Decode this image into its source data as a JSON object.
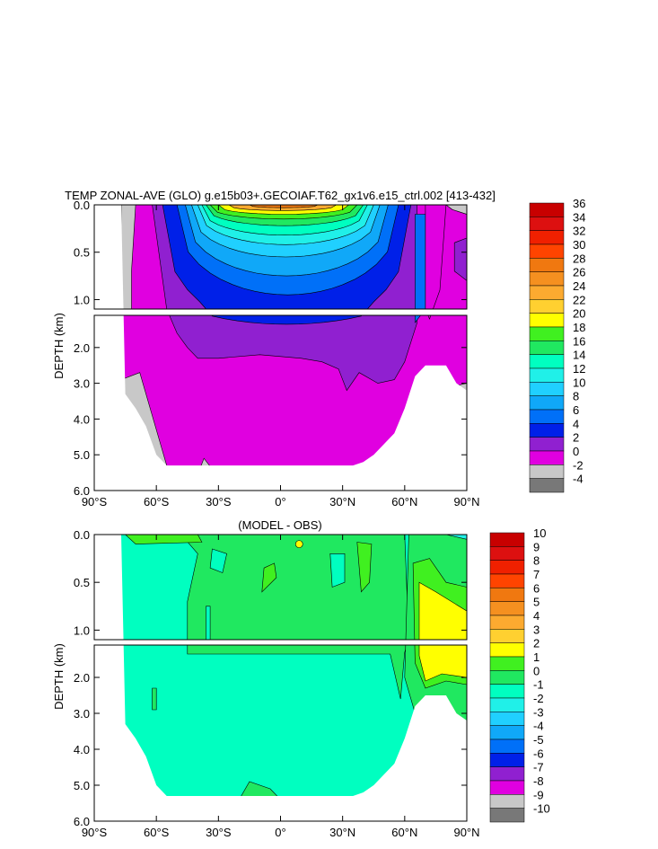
{
  "chart_data": [
    {
      "type": "heatmap",
      "title": "TEMP ZONAL-AVE (GLO) g.e15b03+.GECOIAF.T62_gx1v6.e15_ctrl.002 [413-432]",
      "xlabel": "",
      "ylabel": "DEPTH (km)",
      "xlim": [
        -90,
        90
      ],
      "x_ticks": [
        "90°S",
        "60°S",
        "30°S",
        "0°",
        "30°N",
        "60°N",
        "90°N"
      ],
      "upper_y_ticks": [
        "0.0",
        "0.5",
        "1.0"
      ],
      "lower_y_ticks": [
        "2.0",
        "3.0",
        "4.0",
        "5.0",
        "6.0"
      ],
      "upper_ylim": [
        0,
        1.1
      ],
      "lower_ylim": [
        1.1,
        6.0
      ],
      "colorbar_labels": [
        "36",
        "34",
        "32",
        "30",
        "28",
        "26",
        "24",
        "22",
        "20",
        "18",
        "16",
        "14",
        "12",
        "10",
        "8",
        "6",
        "4",
        "2",
        "0",
        "-2",
        "-4"
      ],
      "colors": [
        "#c80000",
        "#dd1010",
        "#f02000",
        "#ff4400",
        "#f07810",
        "#f59020",
        "#fcaa30",
        "#ffd030",
        "#ffff00",
        "#40f020",
        "#20e860",
        "#00ffc0",
        "#20f0e8",
        "#20d0ff",
        "#10a8f8",
        "#0070f8",
        "#0020e8",
        "#9020d0",
        "#e000e0",
        "#c8c8c8",
        "#787878"
      ],
      "bathymetry_depth_km": [
        6.0,
        6.0,
        6.0,
        3.3,
        3.7,
        4.2,
        5.0,
        5.3,
        5.3,
        5.3,
        5.3,
        5.3,
        5.3,
        5.3,
        5.3,
        5.3,
        5.3,
        5.3,
        5.3,
        5.3,
        5.3,
        5.3,
        5.3,
        5.3,
        5.3,
        5.3,
        5.2,
        5.0,
        4.7,
        4.4,
        3.7,
        2.8,
        2.5,
        2.5,
        2.5,
        3.0,
        3.2
      ],
      "warm_layer_bottom_km": [
        0.0,
        0.0,
        0.0,
        0.0,
        0.2,
        0.6,
        0.85,
        0.95,
        1.0,
        1.05,
        1.05,
        1.05,
        1.05,
        1.05,
        1.05,
        1.05,
        1.05,
        1.05,
        1.05,
        1.05,
        1.05,
        1.1,
        1.1,
        1.15,
        1.2,
        1.3,
        1.3,
        0.6,
        0.1,
        0.0,
        0.0,
        0.0,
        0.0,
        0.0,
        0.0,
        0.0,
        0.0
      ],
      "cold_layer_top_km": [
        0,
        0,
        0,
        0,
        0,
        1.5,
        2.2,
        2.4,
        2.4,
        2.3,
        2.3,
        2.2,
        2.2,
        2.3,
        2.3,
        2.2,
        2.3,
        2.4,
        2.4,
        2.4,
        2.5,
        2.6,
        2.7,
        3.0,
        2.8,
        2.9,
        2.4,
        1.5,
        1.2,
        0,
        0,
        0,
        0,
        0,
        0,
        0,
        0
      ]
    },
    {
      "type": "heatmap",
      "title": "(MODEL - OBS)",
      "xlabel": "",
      "ylabel": "DEPTH (km)",
      "xlim": [
        -90,
        90
      ],
      "x_ticks": [
        "90°S",
        "60°S",
        "30°S",
        "0°",
        "30°N",
        "60°N",
        "90°N"
      ],
      "upper_y_ticks": [
        "0.0",
        "0.5",
        "1.0"
      ],
      "lower_y_ticks": [
        "2.0",
        "3.0",
        "4.0",
        "5.0",
        "6.0"
      ],
      "upper_ylim": [
        0,
        1.1
      ],
      "lower_ylim": [
        1.1,
        6.0
      ],
      "colorbar_labels": [
        "10",
        "9",
        "8",
        "7",
        "6",
        "5",
        "4",
        "3",
        "2",
        "1",
        "0",
        "-1",
        "-2",
        "-3",
        "-4",
        "-5",
        "-6",
        "-7",
        "-8",
        "-9",
        "-10"
      ],
      "colors": [
        "#c80000",
        "#dd1010",
        "#f02000",
        "#ff4400",
        "#f07810",
        "#f59020",
        "#fcaa30",
        "#ffd030",
        "#ffff00",
        "#40f020",
        "#20e860",
        "#00ffc0",
        "#20f0e8",
        "#20d0ff",
        "#10a8f8",
        "#0070f8",
        "#0020e8",
        "#9020d0",
        "#e000e0",
        "#c8c8c8",
        "#787878"
      ]
    }
  ]
}
